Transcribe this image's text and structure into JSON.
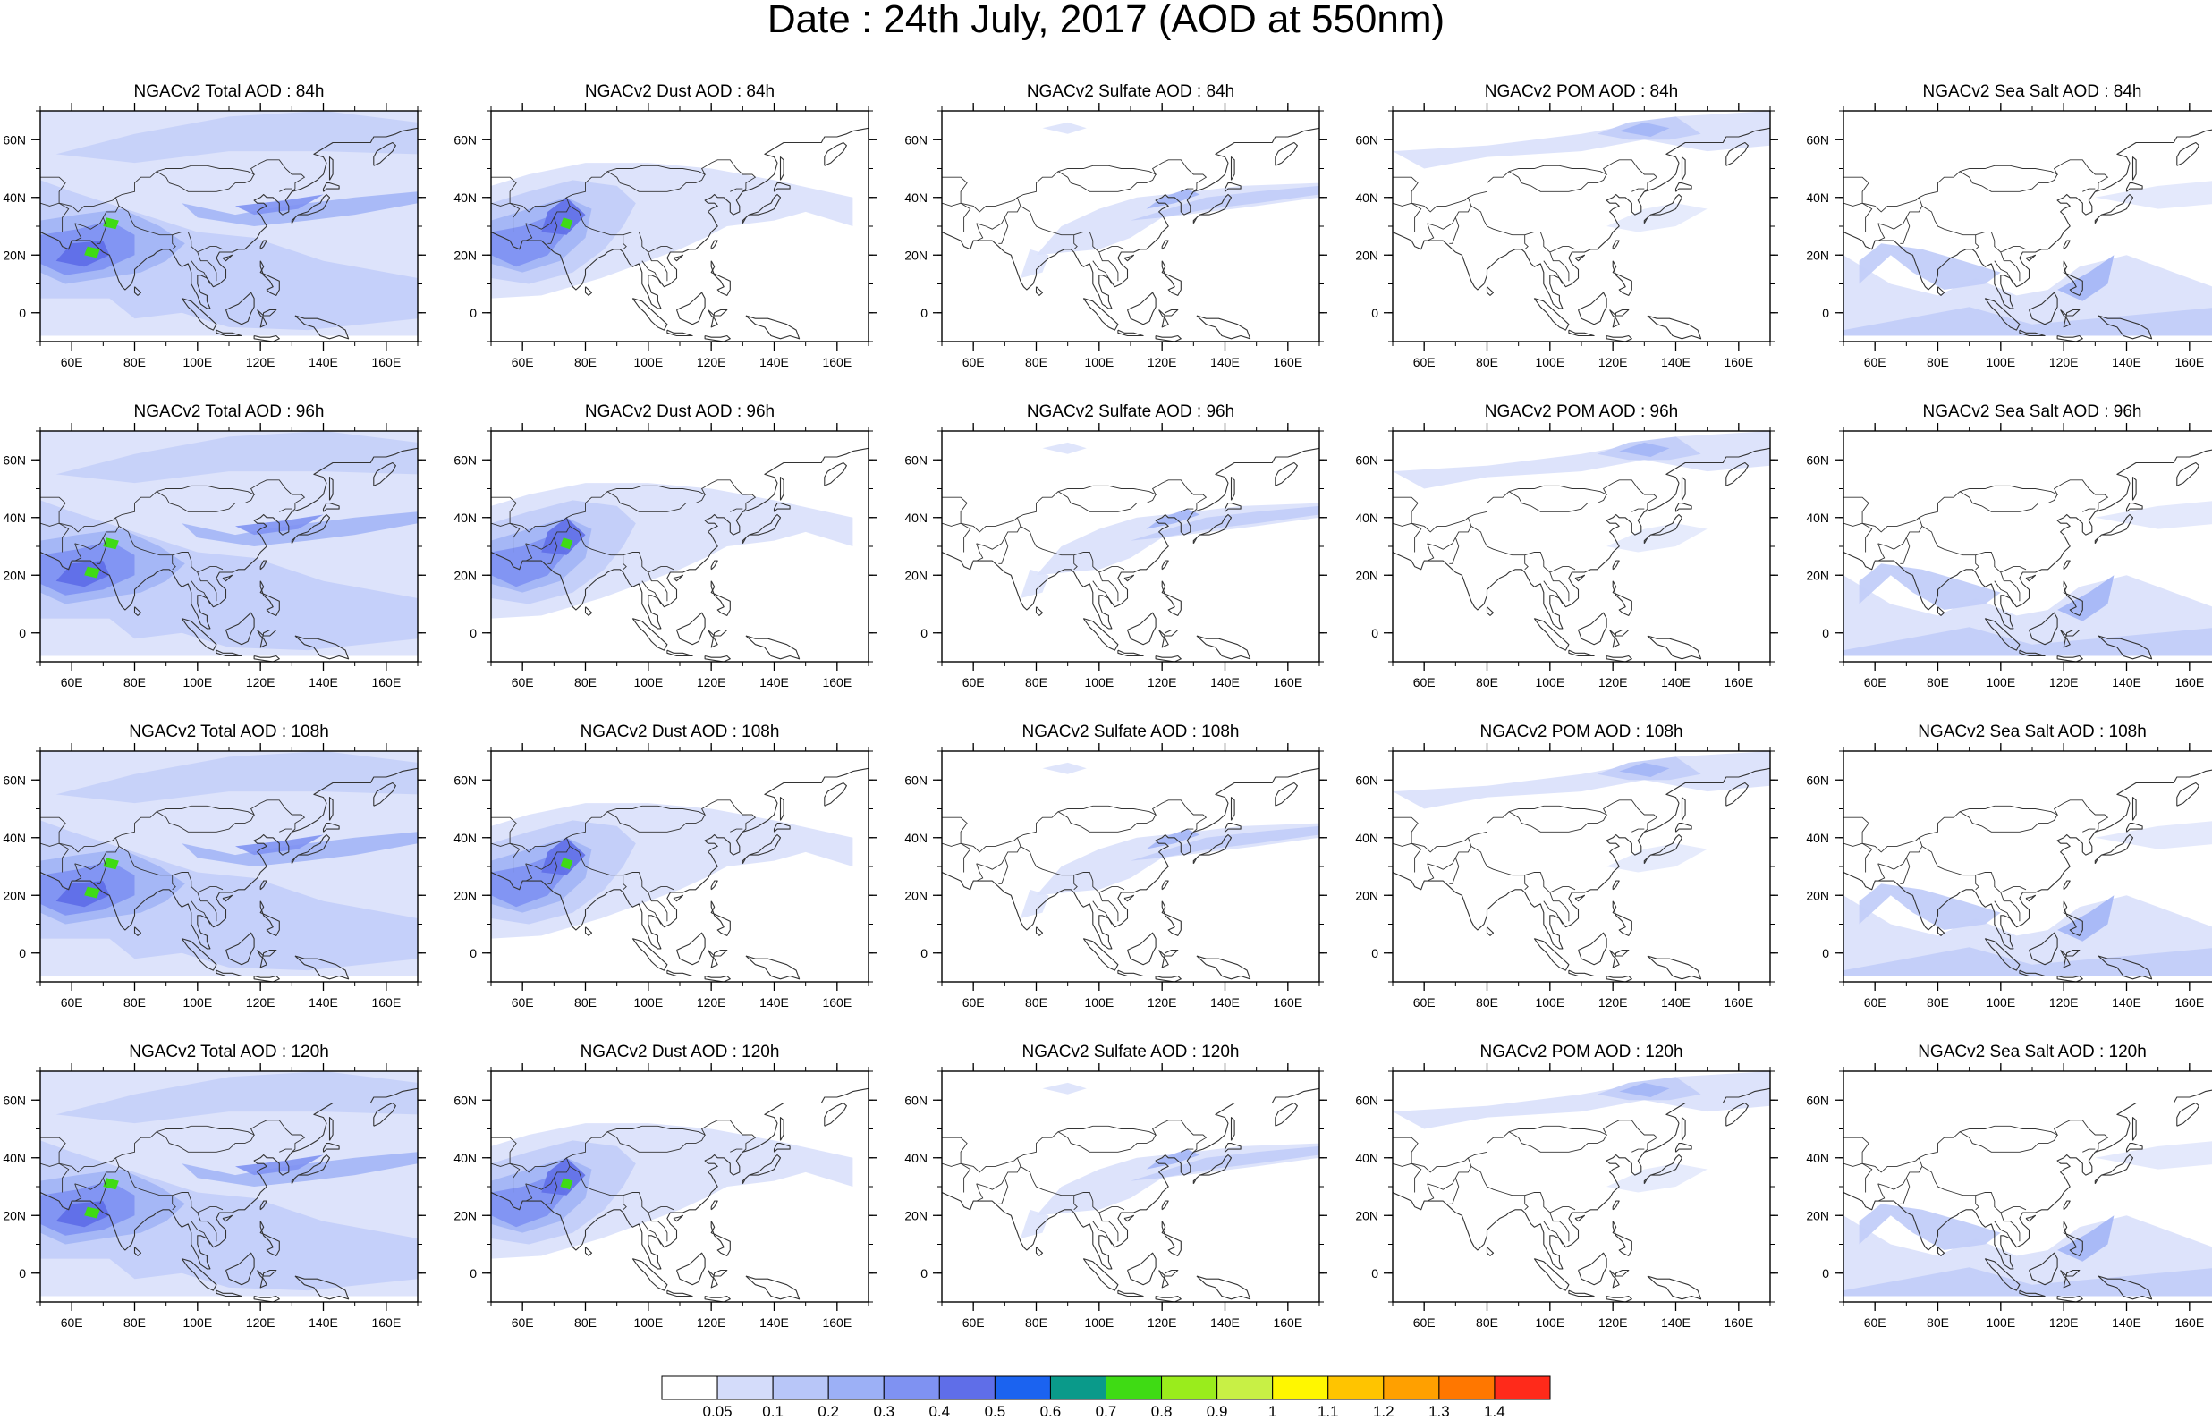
{
  "title": "Date : 24th July, 2017 (AOD at 550nm)",
  "map": {
    "lon_ticks": [
      "60E",
      "80E",
      "100E",
      "120E",
      "140E",
      "160E"
    ],
    "lon_values": [
      60,
      80,
      100,
      120,
      140,
      160
    ],
    "lat_ticks": [
      "60N",
      "40N",
      "20N",
      "0"
    ],
    "lat_values": [
      60,
      40,
      20,
      0
    ],
    "lon_range": [
      50,
      170
    ],
    "lat_range": [
      -10,
      70
    ]
  },
  "panels": [
    [
      "NGACv2 Total AOD : 84h",
      "NGACv2 Dust AOD : 84h",
      "NGACv2 Sulfate AOD : 84h",
      "NGACv2 POM AOD : 84h",
      "NGACv2 Sea Salt AOD : 84h"
    ],
    [
      "NGACv2 Total AOD : 96h",
      "NGACv2 Dust AOD : 96h",
      "NGACv2 Sulfate AOD : 96h",
      "NGACv2 POM AOD : 96h",
      "NGACv2 Sea Salt AOD : 96h"
    ],
    [
      "NGACv2 Total AOD : 108h",
      "NGACv2 Dust AOD : 108h",
      "NGACv2 Sulfate AOD : 108h",
      "NGACv2 POM AOD : 108h",
      "NGACv2 Sea Salt AOD : 108h"
    ],
    [
      "NGACv2 Total AOD : 120h",
      "NGACv2 Dust AOD : 120h",
      "NGACv2 Sulfate AOD : 120h",
      "NGACv2 POM AOD : 120h",
      "NGACv2 Sea Salt  AOD : 120h"
    ]
  ],
  "colorbar": {
    "labels": [
      "0.05",
      "0.1",
      "0.2",
      "0.3",
      "0.4",
      "0.5",
      "0.6",
      "0.7",
      "0.8",
      "0.9",
      "1",
      "1.1",
      "1.2",
      "1.3",
      "1.4"
    ],
    "colors": [
      "#ffffff",
      "#d4dcfa",
      "#b8c6f8",
      "#9cb0f6",
      "#7f92f2",
      "#5f6ee8",
      "#1b63f0",
      "#0a9a8a",
      "#3fdb14",
      "#9aec1c",
      "#c8f045",
      "#fff700",
      "#ffc400",
      "#ffa000",
      "#ff7700",
      "#ff2a1a"
    ]
  },
  "colors": {
    "coast": "#333333",
    "aod_faint": "#dbe2fb",
    "aod_light": "#c2cdf9",
    "aod_mid": "#a3b5f6",
    "aod_strong": "#7f92f2",
    "aod_heavy": "#5f6ee8",
    "aod_peak": "#3fdb14"
  }
}
